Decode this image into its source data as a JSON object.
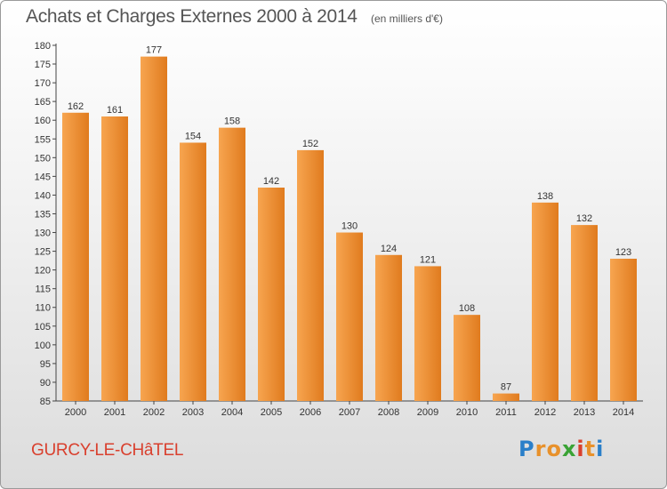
{
  "header": {
    "title": "Achats et Charges Externes 2000 à 2014",
    "unit": "(en milliers d'€)"
  },
  "footer": {
    "place": "GURCY-LE-CHâTEL",
    "logo": {
      "text": "Proxiti",
      "letters": [
        {
          "ch": "P",
          "color": "#2a7fc9"
        },
        {
          "ch": "r",
          "color": "#e8912b"
        },
        {
          "ch": "o",
          "color": "#e8912b"
        },
        {
          "ch": "x",
          "color": "#3aa335"
        },
        {
          "ch": "i",
          "color": "#d9402e"
        },
        {
          "ch": "t",
          "color": "#e8912b"
        },
        {
          "ch": "i",
          "color": "#2a7fc9"
        }
      ]
    }
  },
  "colors": {
    "bar_light": "#f7a550",
    "bar_dark": "#e07b1e",
    "title": "#555555",
    "place": "#d9402e"
  },
  "chart_data": {
    "type": "bar",
    "title": "Achats et Charges Externes 2000 à 2014",
    "subtitle": "(en milliers d'€)",
    "categories": [
      "2000",
      "2001",
      "2002",
      "2003",
      "2004",
      "2005",
      "2006",
      "2007",
      "2008",
      "2009",
      "2010",
      "2011",
      "2012",
      "2013",
      "2014"
    ],
    "values": [
      162,
      161,
      177,
      154,
      158,
      142,
      152,
      130,
      124,
      121,
      108,
      87,
      138,
      132,
      123
    ],
    "ylim": [
      85,
      180
    ],
    "yticks": [
      85,
      90,
      95,
      100,
      105,
      110,
      115,
      120,
      125,
      130,
      135,
      140,
      145,
      150,
      155,
      160,
      165,
      170,
      175,
      180
    ],
    "grid": false,
    "legend": "none"
  }
}
